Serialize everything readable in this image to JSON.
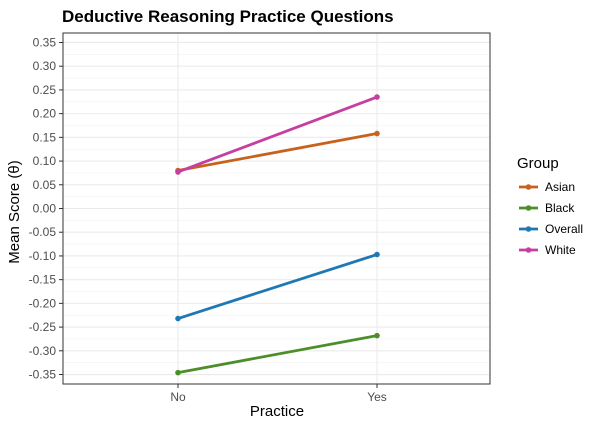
{
  "chart_data": {
    "type": "line",
    "title": "Deductive Reasoning Practice Questions",
    "xlabel": "Practice",
    "ylabel": "Mean Score (θ)",
    "categories": [
      "No",
      "Yes"
    ],
    "ylim": [
      -0.37,
      0.37
    ],
    "yticks": [
      "-0.35",
      "-0.30",
      "-0.25",
      "-0.20",
      "-0.15",
      "-0.10",
      "-0.05",
      "0.00",
      "0.05",
      "0.10",
      "0.15",
      "0.20",
      "0.25",
      "0.30",
      "0.35"
    ],
    "grid": true,
    "legend_title": "Group",
    "legend_position": "right",
    "series": [
      {
        "name": "Asian",
        "color": "#c8611b",
        "values": [
          0.08,
          0.158
        ]
      },
      {
        "name": "Black",
        "color": "#4c8f2a",
        "values": [
          -0.346,
          -0.268
        ]
      },
      {
        "name": "Overall",
        "color": "#1f78b4",
        "values": [
          -0.232,
          -0.097
        ]
      },
      {
        "name": "White",
        "color": "#c43f9f",
        "values": [
          0.077,
          0.235
        ]
      }
    ]
  }
}
